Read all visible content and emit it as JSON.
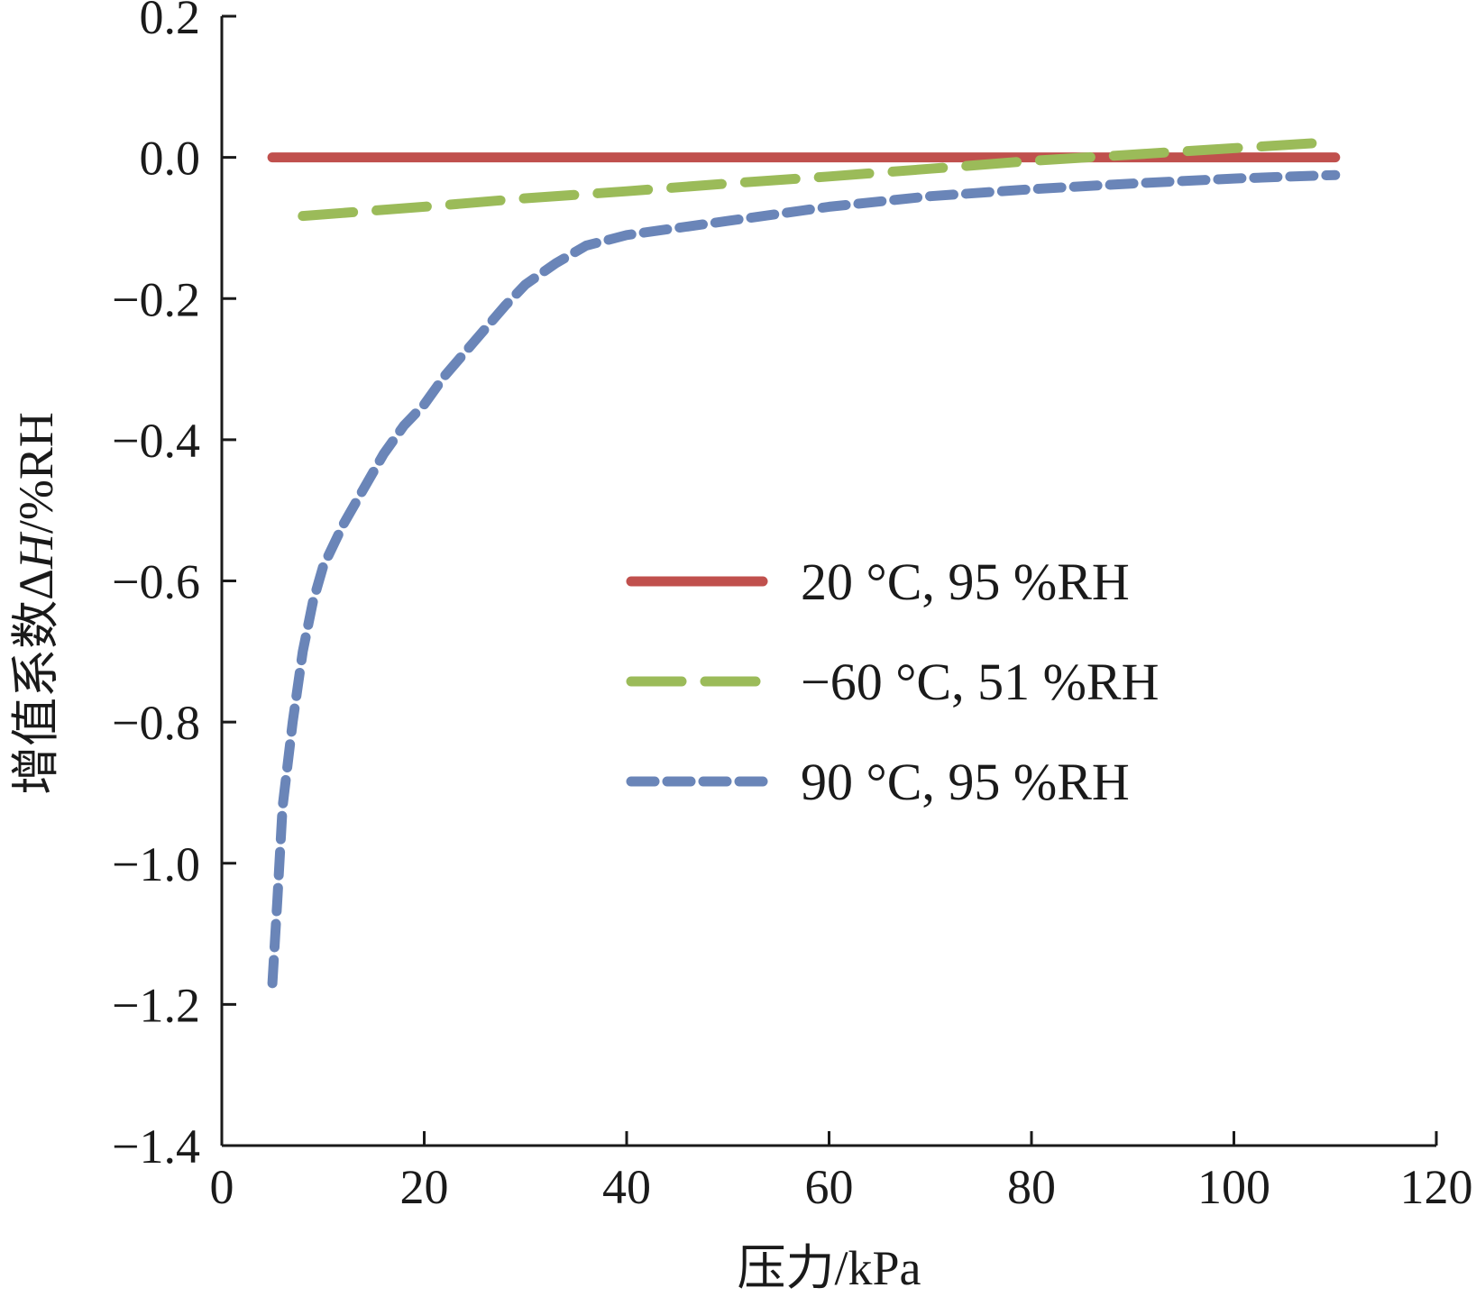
{
  "chart_data": {
    "type": "line",
    "title": "",
    "xlabel": "压力/kPa",
    "ylabel_parts": [
      "增值系数Δ",
      "H",
      "/%RH"
    ],
    "xlim": [
      0,
      120
    ],
    "ylim": [
      -1.4,
      0.2
    ],
    "xticks": [
      0,
      20,
      40,
      60,
      80,
      100,
      120
    ],
    "xtick_labels": [
      "0",
      "20",
      "40",
      "60",
      "80",
      "100",
      "120"
    ],
    "yticks": [
      0.2,
      0.0,
      -0.2,
      -0.4,
      -0.6,
      -0.8,
      -1.0,
      -1.2,
      -1.4
    ],
    "ytick_labels": [
      "0.2",
      "0.0",
      "−0.2",
      "−0.4",
      "−0.6",
      "−0.8",
      "−1.0",
      "−1.2",
      "−1.4"
    ],
    "grid": false,
    "legend_position": "center-right",
    "series": [
      {
        "name": "20 °C, 95 %RH",
        "color": "#c0504d",
        "style": "solid",
        "x": [
          5,
          10,
          20,
          30,
          40,
          50,
          60,
          70,
          80,
          90,
          100,
          110
        ],
        "y": [
          0.0,
          0.0,
          0.0,
          0.0,
          0.0,
          0.0,
          0.0,
          0.0,
          0.0,
          0.0,
          0.0,
          0.0
        ]
      },
      {
        "name": "−60 °C, 51 %RH",
        "color": "#9bbb59",
        "style": "long-dash",
        "x": [
          8,
          20,
          30,
          40,
          50,
          60,
          70,
          80,
          90,
          100,
          110
        ],
        "y": [
          -0.083,
          -0.07,
          -0.058,
          -0.048,
          -0.037,
          -0.027,
          -0.016,
          -0.005,
          0.004,
          0.013,
          0.022
        ]
      },
      {
        "name": "90 °C, 95 %RH",
        "color": "#6a85b8",
        "style": "short-dash",
        "x": [
          5,
          5.5,
          6,
          7,
          8,
          9,
          10,
          12,
          14,
          16,
          18,
          20,
          22,
          25,
          28,
          30,
          33,
          36,
          40,
          45,
          50,
          55,
          60,
          70,
          80,
          90,
          100,
          110
        ],
        "y": [
          -1.17,
          -1.05,
          -0.92,
          -0.8,
          -0.7,
          -0.63,
          -0.58,
          -0.52,
          -0.47,
          -0.42,
          -0.38,
          -0.35,
          -0.31,
          -0.26,
          -0.21,
          -0.18,
          -0.15,
          -0.125,
          -0.11,
          -0.1,
          -0.09,
          -0.08,
          -0.07,
          -0.055,
          -0.045,
          -0.037,
          -0.03,
          -0.025
        ]
      }
    ]
  }
}
